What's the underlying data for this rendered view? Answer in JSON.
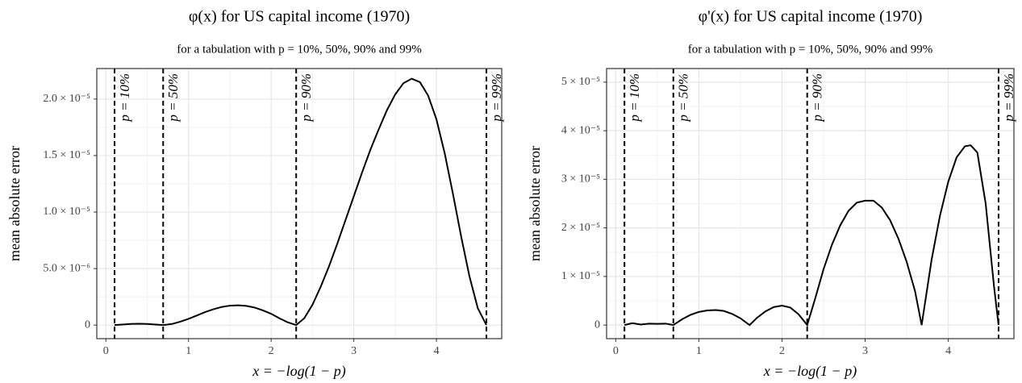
{
  "chart_data": [
    {
      "type": "line",
      "title": "φ(x) for US capital income (1970)",
      "subtitle": "for a tabulation with p = 10%, 50%, 90% and 99%",
      "xlabel": "x = −log(1 − p)",
      "ylabel": "mean absolute error",
      "xlim": [
        -0.11,
        4.79
      ],
      "ylim": [
        -1.2e-06,
        2.27e-05
      ],
      "xticks": [
        0,
        1,
        2,
        3,
        4
      ],
      "yticks": [
        0,
        {
          "value": 5e-06,
          "label": "5.0 × 10⁻⁶"
        },
        {
          "value": 1e-05,
          "label": "1.0 × 10⁻⁵"
        },
        {
          "value": 1.5e-05,
          "label": "1.5 × 10⁻⁵"
        },
        {
          "value": 2e-05,
          "label": "2.0 × 10⁻⁵"
        }
      ],
      "grid": true,
      "reference_lines": [
        {
          "x": 0.105,
          "label": "p = 10%"
        },
        {
          "x": 0.693,
          "label": "p = 50%"
        },
        {
          "x": 2.303,
          "label": "p = 90%"
        },
        {
          "x": 4.605,
          "label": "p = 99%"
        }
      ],
      "x": [
        0.105,
        0.2,
        0.3,
        0.4,
        0.5,
        0.6,
        0.693,
        0.8,
        0.9,
        1.0,
        1.1,
        1.2,
        1.3,
        1.4,
        1.5,
        1.6,
        1.7,
        1.8,
        1.9,
        2.0,
        2.1,
        2.2,
        2.303,
        2.4,
        2.5,
        2.6,
        2.7,
        2.8,
        2.9,
        3.0,
        3.1,
        3.2,
        3.3,
        3.4,
        3.5,
        3.6,
        3.7,
        3.8,
        3.9,
        4.0,
        4.1,
        4.2,
        4.3,
        4.4,
        4.5,
        4.605
      ],
      "series": [
        {
          "color": "#000000",
          "values": [
            0,
            5e-08,
            1e-07,
            1.2e-07,
            1e-07,
            5e-08,
            0,
            1e-07,
            3e-07,
            5.5e-07,
            8.5e-07,
            1.15e-06,
            1.4e-06,
            1.6e-06,
            1.72e-06,
            1.75e-06,
            1.7e-06,
            1.55e-06,
            1.3e-06,
            1e-06,
            6e-07,
            2.5e-07,
            0,
            6e-07,
            1.8e-06,
            3.4e-06,
            5.2e-06,
            7.2e-06,
            9.3e-06,
            1.14e-05,
            1.35e-05,
            1.55e-05,
            1.73e-05,
            1.9e-05,
            2.04e-05,
            2.14e-05,
            2.18e-05,
            2.15e-05,
            2.03e-05,
            1.82e-05,
            1.52e-05,
            1.16e-05,
            7.8e-06,
            4.3e-06,
            1.5e-06,
            0
          ]
        }
      ]
    },
    {
      "type": "line",
      "title": "φ'(x) for US capital income (1970)",
      "subtitle": "for a tabulation with p = 10%, 50%, 90% and 99%",
      "xlabel": "x = −log(1 − p)",
      "ylabel": "mean absolute error",
      "xlim": [
        -0.11,
        4.79
      ],
      "ylim": [
        -2.8e-06,
        5.28e-05
      ],
      "xticks": [
        0,
        1,
        2,
        3,
        4
      ],
      "yticks": [
        0,
        {
          "value": 1e-05,
          "label": "1 × 10⁻⁵"
        },
        {
          "value": 2e-05,
          "label": "2 × 10⁻⁵"
        },
        {
          "value": 3e-05,
          "label": "3 × 10⁻⁵"
        },
        {
          "value": 4e-05,
          "label": "4 × 10⁻⁵"
        },
        {
          "value": 5e-05,
          "label": "5 × 10⁻⁵"
        }
      ],
      "grid": true,
      "reference_lines": [
        {
          "x": 0.105,
          "label": "p = 10%"
        },
        {
          "x": 0.693,
          "label": "p = 50%"
        },
        {
          "x": 2.303,
          "label": "p = 90%"
        },
        {
          "x": 4.605,
          "label": "p = 99%"
        }
      ],
      "x": [
        0.105,
        0.2,
        0.3,
        0.4,
        0.5,
        0.6,
        0.693,
        0.8,
        0.9,
        1.0,
        1.1,
        1.2,
        1.3,
        1.4,
        1.5,
        1.61,
        1.7,
        1.8,
        1.9,
        2.0,
        2.1,
        2.2,
        2.303,
        2.4,
        2.5,
        2.6,
        2.7,
        2.8,
        2.9,
        3.0,
        3.1,
        3.2,
        3.3,
        3.4,
        3.5,
        3.6,
        3.68,
        3.8,
        3.9,
        4.0,
        4.1,
        4.2,
        4.27,
        4.35,
        4.45,
        4.55,
        4.605
      ],
      "series": [
        {
          "color": "#000000",
          "values": [
            0,
            4e-07,
            1e-07,
            3e-07,
            2.5e-07,
            3e-07,
            0,
            1.2e-06,
            2.1e-06,
            2.7e-06,
            3e-06,
            3.1e-06,
            2.9e-06,
            2.3e-06,
            1.4e-06,
            0,
            1.5e-06,
            2.8e-06,
            3.7e-06,
            4e-06,
            3.6e-06,
            2.2e-06,
            0,
            5.5e-06,
            1.15e-05,
            1.65e-05,
            2.05e-05,
            2.35e-05,
            2.52e-05,
            2.56e-05,
            2.56e-05,
            2.42e-05,
            2.16e-05,
            1.78e-05,
            1.3e-05,
            7e-06,
            0,
            1.35e-05,
            2.25e-05,
            2.95e-05,
            3.45e-05,
            3.68e-05,
            3.7e-05,
            3.55e-05,
            2.5e-05,
            8e-06,
            0
          ]
        }
      ]
    }
  ]
}
